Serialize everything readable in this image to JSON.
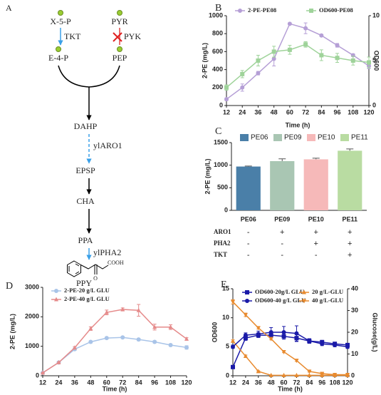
{
  "diagram": {
    "label": "A",
    "nodes": [
      "X-5-P",
      "PYR",
      "E-4-P",
      "PEP",
      "DAHP",
      "EPSP",
      "CHA",
      "PPA",
      "PPY"
    ],
    "enzymes": [
      "TKT",
      "PYK",
      "ylARO1",
      "ylPHA2"
    ],
    "structure": [
      "COOH",
      "O"
    ]
  },
  "chart_data": [
    {
      "label": "B",
      "type": "line",
      "x": [
        12,
        24,
        36,
        48,
        60,
        72,
        84,
        96,
        108,
        120
      ],
      "xlim": [
        12,
        120
      ],
      "xticks": [
        12,
        24,
        36,
        48,
        60,
        72,
        84,
        96,
        108,
        120
      ],
      "xlabel": "Time (h)",
      "ylabel": "2-PE (mg/L)",
      "ylim": [
        0,
        1000
      ],
      "yticks": [
        0,
        200,
        400,
        600,
        800,
        1000
      ],
      "y2label": "OD600",
      "y2lim": [
        0,
        10
      ],
      "y2ticks": [
        0,
        5,
        10
      ],
      "series": [
        {
          "name": "2-PE-PE08",
          "color": "#b59fd6",
          "marker": "circle",
          "values": [
            70,
            200,
            360,
            520,
            910,
            860,
            780,
            670,
            560,
            440
          ],
          "errors": [
            15,
            40,
            20,
            80,
            10,
            60,
            10,
            20,
            15,
            30
          ]
        },
        {
          "name": "OD600-PE08",
          "color": "#9fd39a",
          "marker": "square",
          "axis": "y2",
          "values": [
            2,
            3.5,
            5,
            6,
            6.2,
            6.8,
            5.6,
            5.3,
            5,
            4.8
          ],
          "errors": [
            0.3,
            0.4,
            0.6,
            0.6,
            0.5,
            0.3,
            0.6,
            0.5,
            0.5,
            0.6
          ]
        }
      ]
    },
    {
      "label": "C",
      "type": "bar",
      "categories": [
        "PE06",
        "PE09",
        "PE10",
        "PE11"
      ],
      "values": [
        970,
        1090,
        1130,
        1320
      ],
      "errors": [
        10,
        50,
        25,
        40
      ],
      "colors": [
        "#4a7fa8",
        "#a9c6b3",
        "#f6b9b9",
        "#b9dca2"
      ],
      "legend": true,
      "ylabel": "2-PE (mg/L)",
      "ylim": [
        0,
        1500
      ],
      "yticks": [
        0,
        500,
        1000,
        1500
      ],
      "table": {
        "rows": [
          {
            "name": "ARO1",
            "cells": [
              "-",
              "+",
              "+",
              "+"
            ]
          },
          {
            "name": "PHA2",
            "cells": [
              "-",
              "-",
              "+",
              "+"
            ]
          },
          {
            "name": "TKT",
            "cells": [
              "-",
              "-",
              "-",
              "+"
            ]
          }
        ]
      }
    },
    {
      "label": "D",
      "type": "line",
      "x": [
        12,
        24,
        36,
        48,
        60,
        72,
        84,
        96,
        108,
        120
      ],
      "xlim": [
        12,
        120
      ],
      "xticks": [
        12,
        24,
        36,
        48,
        60,
        72,
        84,
        96,
        108,
        120
      ],
      "xlabel": "Time (h)",
      "ylabel": "2-PE (mg/L)",
      "ylim": [
        0,
        3000
      ],
      "yticks": [
        0,
        1000,
        2000,
        3000
      ],
      "series": [
        {
          "name": "2-PE-20 g/L GLU",
          "color": "#a9c4e8",
          "marker": "circle",
          "values": [
            100,
            450,
            900,
            1150,
            1280,
            1300,
            1230,
            1150,
            1040,
            960
          ],
          "errors": [
            10,
            20,
            40,
            30,
            30,
            30,
            40,
            40,
            40,
            60
          ]
        },
        {
          "name": "2-PE-40 g/L GLU",
          "color": "#e58a8a",
          "marker": "triangle",
          "values": [
            100,
            450,
            950,
            1600,
            2150,
            2250,
            2220,
            1650,
            1650,
            1250
          ],
          "errors": [
            10,
            20,
            40,
            60,
            80,
            50,
            200,
            100,
            80,
            40
          ]
        }
      ]
    },
    {
      "label": "E",
      "type": "line",
      "x": [
        12,
        24,
        36,
        48,
        60,
        72,
        84,
        96,
        108,
        120
      ],
      "xlim": [
        12,
        120
      ],
      "xticks": [
        12,
        24,
        36,
        48,
        60,
        72,
        84,
        96,
        108,
        120
      ],
      "xlabel": "Time (h)",
      "ylabel": "OD600",
      "ylabel_color": "#1a1aa8",
      "ylim": [
        0,
        15
      ],
      "yticks": [
        0,
        5,
        10,
        15
      ],
      "y2label": "Glucose(g/L)",
      "y2label_color": "#e88a2e",
      "y2lim": [
        0,
        40
      ],
      "y2ticks": [
        0,
        10,
        20,
        30,
        40
      ],
      "series": [
        {
          "name": "OD600-20g/L GLU",
          "color": "#1a1aa8",
          "marker": "square",
          "values": [
            1.5,
            6.5,
            7,
            7,
            6.8,
            6.5,
            6,
            5.8,
            5.5,
            5.3
          ],
          "errors": [
            0.2,
            0.4,
            0.4,
            0.5,
            0.5,
            0.6,
            0.4,
            0.3,
            0.3,
            0.3
          ]
        },
        {
          "name": "20 g/L-GLU",
          "color": "#e88a2e",
          "marker": "triangle",
          "axis": "y2",
          "values": [
            16,
            9,
            2,
            0.2,
            0.2,
            0.2,
            0.2,
            0.2,
            0.2,
            0.2
          ],
          "errors": [
            0.5,
            0.5,
            0.3,
            0,
            0,
            0,
            0,
            0,
            0,
            0
          ]
        },
        {
          "name": "OD600-40 g/L GLU",
          "color": "#1a1aa8",
          "marker": "circle",
          "values": [
            5,
            7,
            7.2,
            7.5,
            7.5,
            7.3,
            6,
            5.5,
            5.3,
            5
          ],
          "errors": [
            0.3,
            0.4,
            0.5,
            0.8,
            1,
            1.3,
            0.4,
            0.3,
            0.3,
            0.3
          ]
        },
        {
          "name": "40 g/L-GLU",
          "color": "#e88a2e",
          "marker": "triangle-down",
          "axis": "y2",
          "values": [
            34,
            28,
            22,
            17,
            11,
            7,
            2,
            1,
            0.5,
            0.5
          ],
          "errors": [
            1,
            0.8,
            0.5,
            0.5,
            0.4,
            0.4,
            0.3,
            0.3,
            0.2,
            0.2
          ]
        }
      ]
    }
  ]
}
